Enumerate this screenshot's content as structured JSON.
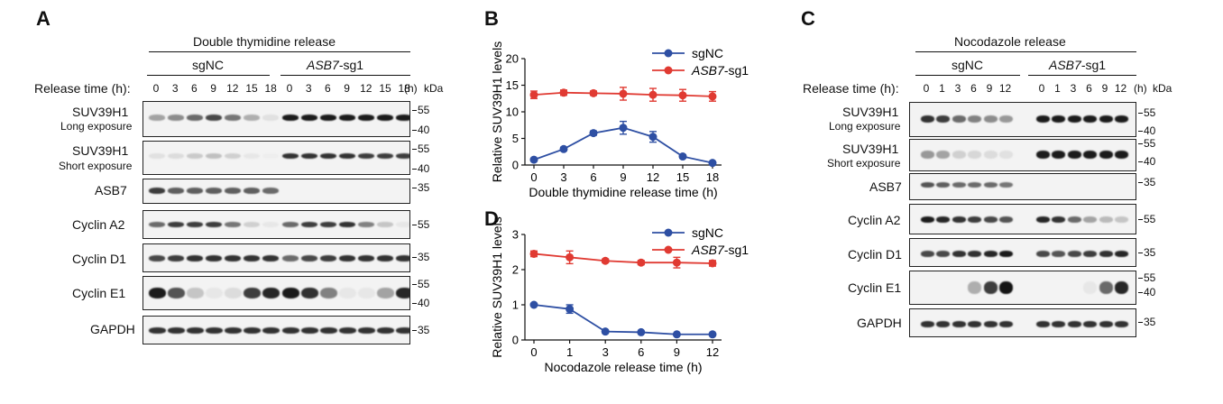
{
  "panel_a": {
    "letter": "A",
    "title": "Double thymidine release",
    "group1": "sgNC",
    "group2_italic": "ASB7",
    "group2_suffix": "-sg1",
    "release_label": "Release time (h):",
    "lanes": [
      "0",
      "3",
      "6",
      "9",
      "12",
      "15",
      "18"
    ],
    "unit_h": "(h)",
    "unit_kda": "kDa",
    "blots": [
      {
        "name": "SUV39H1",
        "sub": "Long exposure",
        "mw": [
          "55",
          "40"
        ]
      },
      {
        "name": "SUV39H1",
        "sub": "Short exposure",
        "mw": [
          "55",
          "40"
        ]
      },
      {
        "name": "ASB7",
        "sub": "",
        "mw": [
          "35"
        ]
      },
      {
        "name": "Cyclin A2",
        "sub": "",
        "mw": [
          "55"
        ]
      },
      {
        "name": "Cyclin D1",
        "sub": "",
        "mw": [
          "35"
        ]
      },
      {
        "name": "Cyclin E1",
        "sub": "",
        "mw": [
          "55",
          "40"
        ]
      },
      {
        "name": "GAPDH",
        "sub": "",
        "mw": [
          "35"
        ]
      }
    ]
  },
  "panel_c": {
    "letter": "C",
    "title": "Nocodazole release",
    "group1": "sgNC",
    "group2_italic": "ASB7",
    "group2_suffix": "-sg1",
    "release_label": "Release time (h):",
    "lanes": [
      "0",
      "1",
      "3",
      "6",
      "9",
      "12"
    ],
    "unit_h": "(h)",
    "unit_kda": "kDa",
    "blots": [
      {
        "name": "SUV39H1",
        "sub": "Long exposure",
        "mw": [
          "55",
          "40"
        ]
      },
      {
        "name": "SUV39H1",
        "sub": "Short exposure",
        "mw": [
          "55",
          "40"
        ]
      },
      {
        "name": "ASB7",
        "sub": "",
        "mw": [
          "35"
        ]
      },
      {
        "name": "Cyclin A2",
        "sub": "",
        "mw": [
          "55"
        ]
      },
      {
        "name": "Cyclin D1",
        "sub": "",
        "mw": [
          "35"
        ]
      },
      {
        "name": "Cyclin E1",
        "sub": "",
        "mw": [
          "55",
          "40"
        ]
      },
      {
        "name": "GAPDH",
        "sub": "",
        "mw": [
          "35"
        ]
      }
    ]
  },
  "chart_data": [
    {
      "panel": "B",
      "type": "line",
      "xlabel": "Double thymidine release time (h)",
      "ylabel": "Relative SUV39H1 levels",
      "x": [
        0,
        3,
        6,
        9,
        12,
        15,
        18
      ],
      "ylim": [
        0,
        20
      ],
      "yticks": [
        0,
        5,
        10,
        15,
        20
      ],
      "series": [
        {
          "name": "sgNC",
          "name_italic": "",
          "name_suffix": "",
          "color": "#2e4fa3",
          "values": [
            1.0,
            3.0,
            6.0,
            7.0,
            5.3,
            1.6,
            0.4
          ],
          "errors": [
            0.2,
            0.3,
            0.4,
            1.2,
            1.0,
            0.3,
            0.1
          ]
        },
        {
          "name": "ASB7-sg1",
          "name_italic": "ASB7",
          "name_suffix": "-sg1",
          "color": "#e03a32",
          "values": [
            13.2,
            13.6,
            13.5,
            13.4,
            13.2,
            13.1,
            12.9
          ],
          "errors": [
            0.7,
            0.5,
            0.4,
            1.2,
            1.2,
            1.1,
            0.9
          ]
        }
      ]
    },
    {
      "panel": "D",
      "type": "line",
      "xlabel": "Nocodazole release time (h)",
      "ylabel": "Relative SUV39H1 levels",
      "x": [
        0,
        1,
        3,
        6,
        9,
        12
      ],
      "ylim": [
        0,
        3
      ],
      "yticks": [
        0,
        1,
        2,
        3
      ],
      "series": [
        {
          "name": "sgNC",
          "name_italic": "",
          "name_suffix": "",
          "color": "#2e4fa3",
          "values": [
            1.0,
            0.88,
            0.24,
            0.22,
            0.16,
            0.16
          ],
          "errors": [
            0.02,
            0.12,
            0.02,
            0.02,
            0.02,
            0.02
          ]
        },
        {
          "name": "ASB7-sg1",
          "name_italic": "ASB7",
          "name_suffix": "-sg1",
          "color": "#e03a32",
          "values": [
            2.45,
            2.35,
            2.25,
            2.2,
            2.2,
            2.18
          ],
          "errors": [
            0.08,
            0.18,
            0.05,
            0.06,
            0.15,
            0.08
          ]
        }
      ]
    }
  ]
}
